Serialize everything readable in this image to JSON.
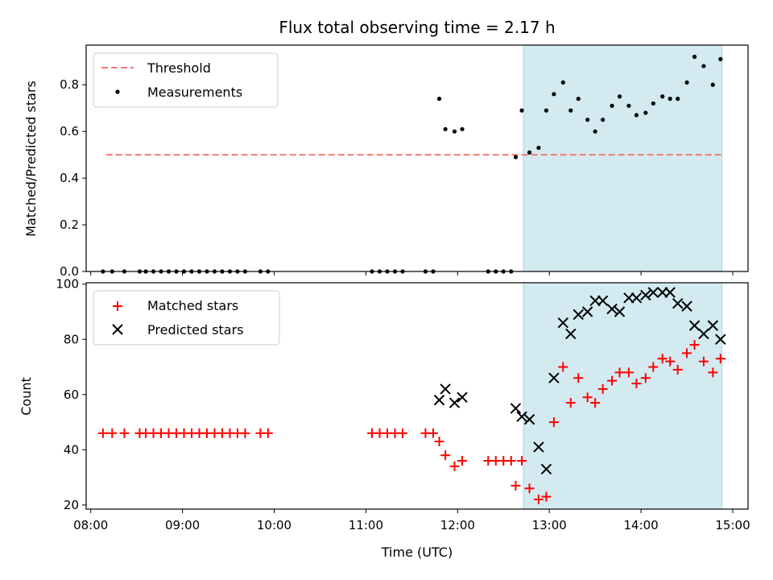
{
  "title": "Flux total observing time = 2.17 h",
  "colors": {
    "threshold": "#f07b7b",
    "measurement": "#000000",
    "matched": "#ff0000",
    "predicted": "#000000",
    "highlight": "#d2eaf0",
    "highlight_edge": "#a8d8e3"
  },
  "chart_data": [
    {
      "type": "scatter",
      "panel": "top",
      "ylabel": "Matched/Predicted stars",
      "xlabel": "",
      "xlim": [
        "07:57",
        "15:10"
      ],
      "ylim": [
        0,
        0.97
      ],
      "yticks": [
        0.0,
        0.2,
        0.4,
        0.6,
        0.8
      ],
      "ytick_labels": [
        "0.0",
        "0.2",
        "0.4",
        "0.6",
        "0.8"
      ],
      "highlight_span": [
        "12:43",
        "14:53"
      ],
      "legend": {
        "placement": "top-left",
        "entries": [
          "Threshold",
          "Measurements"
        ]
      },
      "threshold": {
        "name": "Threshold",
        "value": 0.5,
        "x_range": [
          "08:10",
          "14:53"
        ]
      },
      "series": [
        {
          "name": "Measurements",
          "marker": "dot",
          "x": [
            "08:08",
            "08:14",
            "08:22",
            "08:32",
            "08:36",
            "08:41",
            "08:46",
            "08:51",
            "08:56",
            "09:01",
            "09:06",
            "09:11",
            "09:16",
            "09:21",
            "09:26",
            "09:31",
            "09:36",
            "09:41",
            "09:51",
            "09:56",
            "11:04",
            "11:09",
            "11:14",
            "11:19",
            "11:24",
            "11:39",
            "11:44",
            "11:48",
            "11:52",
            "11:58",
            "12:03",
            "12:20",
            "12:25",
            "12:30",
            "12:35",
            "12:38",
            "12:42",
            "12:47",
            "12:53",
            "12:58",
            "13:03",
            "13:09",
            "13:14",
            "13:19",
            "13:25",
            "13:30",
            "13:35",
            "13:41",
            "13:46",
            "13:52",
            "13:57",
            "14:03",
            "14:08",
            "14:14",
            "14:19",
            "14:24",
            "14:30",
            "14:35",
            "14:41",
            "14:47",
            "14:52"
          ],
          "y": [
            0,
            0,
            0,
            0,
            0,
            0,
            0,
            0,
            0,
            0,
            0,
            0,
            0,
            0,
            0,
            0,
            0,
            0,
            0,
            0,
            0,
            0,
            0,
            0,
            0,
            0,
            0,
            0.74,
            0.61,
            0.6,
            0.61,
            0,
            0,
            0,
            0,
            0.49,
            0.69,
            0.51,
            0.53,
            0.69,
            0.76,
            0.81,
            0.69,
            0.74,
            0.65,
            0.6,
            0.65,
            0.71,
            0.75,
            0.71,
            0.67,
            0.68,
            0.72,
            0.75,
            0.74,
            0.74,
            0.81,
            0.92,
            0.88,
            0.8,
            0.91
          ]
        }
      ]
    },
    {
      "type": "scatter",
      "panel": "bottom",
      "ylabel": "Count",
      "xlabel": "Time (UTC)",
      "xlim": [
        "07:57",
        "15:10"
      ],
      "ylim": [
        18.5,
        100.5
      ],
      "yticks": [
        20,
        40,
        60,
        80,
        100
      ],
      "ytick_labels": [
        "20",
        "40",
        "60",
        "80",
        "100"
      ],
      "xticks": [
        "08:00",
        "09:00",
        "10:00",
        "11:00",
        "12:00",
        "13:00",
        "14:00",
        "15:00"
      ],
      "highlight_span": [
        "12:43",
        "14:53"
      ],
      "legend": {
        "placement": "top-left",
        "entries": [
          "Matched stars",
          "Predicted stars"
        ]
      },
      "series": [
        {
          "name": "Matched stars",
          "marker": "plus",
          "x": [
            "08:08",
            "08:14",
            "08:22",
            "08:32",
            "08:36",
            "08:41",
            "08:46",
            "08:51",
            "08:56",
            "09:01",
            "09:06",
            "09:11",
            "09:16",
            "09:21",
            "09:26",
            "09:31",
            "09:36",
            "09:41",
            "09:51",
            "09:56",
            "11:04",
            "11:09",
            "11:14",
            "11:19",
            "11:24",
            "11:39",
            "11:44",
            "11:48",
            "11:52",
            "11:58",
            "12:03",
            "12:20",
            "12:25",
            "12:30",
            "12:35",
            "12:38",
            "12:42",
            "12:47",
            "12:53",
            "12:58",
            "13:03",
            "13:09",
            "13:14",
            "13:19",
            "13:25",
            "13:30",
            "13:35",
            "13:41",
            "13:46",
            "13:52",
            "13:57",
            "14:03",
            "14:08",
            "14:14",
            "14:19",
            "14:24",
            "14:30",
            "14:35",
            "14:41",
            "14:47",
            "14:52"
          ],
          "y": [
            46,
            46,
            46,
            46,
            46,
            46,
            46,
            46,
            46,
            46,
            46,
            46,
            46,
            46,
            46,
            46,
            46,
            46,
            46,
            46,
            46,
            46,
            46,
            46,
            46,
            46,
            46,
            43,
            38,
            34,
            36,
            36,
            36,
            36,
            36,
            27,
            36,
            26,
            22,
            23,
            50,
            70,
            57,
            66,
            59,
            57,
            62,
            65,
            68,
            68,
            64,
            66,
            70,
            73,
            72,
            69,
            75,
            78,
            72,
            68,
            73
          ]
        },
        {
          "name": "Predicted stars",
          "marker": "x",
          "x": [
            "11:48",
            "11:52",
            "11:58",
            "12:03",
            "12:38",
            "12:42",
            "12:47",
            "12:53",
            "12:58",
            "13:03",
            "13:09",
            "13:14",
            "13:19",
            "13:25",
            "13:30",
            "13:35",
            "13:41",
            "13:46",
            "13:52",
            "13:57",
            "14:03",
            "14:08",
            "14:14",
            "14:19",
            "14:24",
            "14:30",
            "14:35",
            "14:41",
            "14:47",
            "14:52"
          ],
          "y": [
            58,
            62,
            57,
            59,
            55,
            52,
            51,
            41,
            33,
            66,
            86,
            82,
            89,
            90,
            94,
            94,
            91,
            90,
            95,
            95,
            96,
            97,
            97,
            97,
            93,
            92,
            85,
            82,
            85,
            80
          ]
        }
      ]
    }
  ]
}
